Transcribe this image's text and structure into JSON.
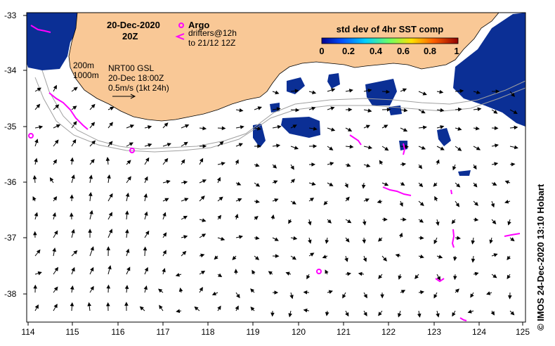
{
  "map": {
    "date_title": "20-Dec-2020",
    "time_title": "20Z",
    "argo_label": "Argo",
    "drifters_line1": "drifters@12h",
    "drifters_line2": "to 21/12 12Z",
    "colorbar_title": "std dev of 4hr SST comp",
    "colorbar_ticks": [
      "0",
      "0.2",
      "0.4",
      "0.6",
      "0.8",
      "1"
    ],
    "isobath_200": "200m",
    "isobath_1000": "1000m",
    "product_line1": "NRT00 GSL",
    "product_line2": "20-Dec 18:00Z",
    "scale_label": "0.5m/s (1kt 24h)",
    "credit": "© IMOS 24-Dec-2020 13:10 Hobart",
    "lat_labels": [
      "-33",
      "-34",
      "-35",
      "-36",
      "-37",
      "-38"
    ],
    "lon_labels": [
      "114",
      "115",
      "116",
      "117",
      "118",
      "119",
      "120",
      "121",
      "122",
      "123",
      "124",
      "125"
    ],
    "colors": {
      "land": "#f9c896",
      "sst_blue": "#0a2a8c",
      "argo": "#ff00ff",
      "drifter": "#ff00ff",
      "isobath": "#a0a0a0",
      "colorbar": [
        "#000090",
        "#0060ff",
        "#00d0ff",
        "#60ff60",
        "#ffe000",
        "#ff6000",
        "#900000"
      ]
    }
  }
}
